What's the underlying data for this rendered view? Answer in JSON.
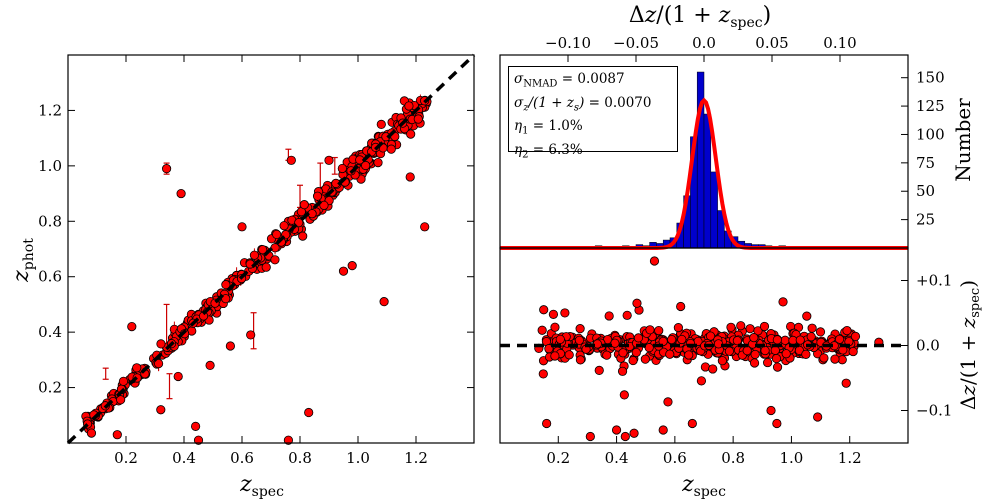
{
  "chart_data": [
    {
      "type": "scatter",
      "xlabel": "z_spec",
      "ylabel": "z_phot",
      "xlim": [
        0.0,
        1.4
      ],
      "ylim": [
        0.0,
        1.4
      ],
      "x_ticks": [
        "0.2",
        "0.4",
        "0.6",
        "0.8",
        "1.0",
        "1.2"
      ],
      "y_ticks": [
        "0.2",
        "0.4",
        "0.6",
        "0.8",
        "1.0",
        "1.2"
      ],
      "reference_line": "1:1 dashed black",
      "point_color": "#ff0000",
      "errorbar_color": "#cc0000",
      "outliers": [
        {
          "x": 0.34,
          "y": 0.99
        },
        {
          "x": 0.39,
          "y": 0.9
        },
        {
          "x": 0.77,
          "y": 1.02
        },
        {
          "x": 1.23,
          "y": 0.78
        },
        {
          "x": 1.09,
          "y": 0.51
        },
        {
          "x": 0.17,
          "y": 0.03
        },
        {
          "x": 0.44,
          "y": 0.06
        },
        {
          "x": 0.45,
          "y": 0.01
        },
        {
          "x": 0.76,
          "y": 0.01
        },
        {
          "x": 0.83,
          "y": 0.11
        },
        {
          "x": 0.32,
          "y": 0.12
        },
        {
          "x": 0.22,
          "y": 0.42
        },
        {
          "x": 0.56,
          "y": 0.35
        },
        {
          "x": 0.95,
          "y": 0.62
        },
        {
          "x": 0.9,
          "y": 1.02
        },
        {
          "x": 1.18,
          "y": 0.96
        },
        {
          "x": 0.6,
          "y": 0.78
        },
        {
          "x": 0.38,
          "y": 0.24
        },
        {
          "x": 0.49,
          "y": 0.28
        },
        {
          "x": 0.63,
          "y": 0.39
        },
        {
          "x": 0.98,
          "y": 0.64
        }
      ],
      "errorbars": [
        {
          "x": 0.34,
          "y": 0.42,
          "lo": 0.34,
          "hi": 0.5
        },
        {
          "x": 0.64,
          "y": 0.41,
          "lo": 0.34,
          "hi": 0.47
        },
        {
          "x": 0.8,
          "y": 0.89,
          "lo": 0.85,
          "hi": 0.93
        },
        {
          "x": 0.87,
          "y": 0.96,
          "lo": 0.91,
          "hi": 1.01
        },
        {
          "x": 0.35,
          "y": 0.19,
          "lo": 0.16,
          "hi": 0.25
        },
        {
          "x": 0.76,
          "y": 1.04,
          "lo": 1.02,
          "hi": 1.06
        },
        {
          "x": 0.92,
          "y": 1.0,
          "lo": 0.97,
          "hi": 1.03
        },
        {
          "x": 0.13,
          "y": 0.25,
          "lo": 0.23,
          "hi": 0.27
        },
        {
          "x": 0.34,
          "y": 0.99,
          "lo": 0.97,
          "hi": 1.01
        }
      ]
    },
    {
      "type": "bar",
      "top_xlabel": "Δz/(1 + z_spec)",
      "ylabel": "Number",
      "top_xlim": [
        -0.15,
        0.15
      ],
      "top_x_ticks": [
        "−0.10",
        "−0.05",
        "0.0",
        "0.05",
        "0.10"
      ],
      "y_ticks": [
        "25",
        "50",
        "75",
        "100",
        "125",
        "150"
      ],
      "ylim": [
        0,
        170
      ],
      "bar_color": "#0000cc",
      "fit_color": "#ff0000",
      "bin_width": 0.005,
      "bin_centers": [
        -0.1375,
        -0.1275,
        -0.1175,
        -0.0975,
        -0.0875,
        -0.0775,
        -0.0675,
        -0.0575,
        -0.0475,
        -0.0425,
        -0.0375,
        -0.0325,
        -0.0275,
        -0.0225,
        -0.0175,
        -0.0125,
        -0.0075,
        -0.0025,
        0.0025,
        0.0075,
        0.0125,
        0.0175,
        0.0225,
        0.0275,
        0.0325,
        0.0375,
        0.0425,
        0.0475,
        0.0575,
        0.0675,
        0.0875,
        0.1075
      ],
      "counts": [
        1,
        1,
        1,
        1,
        1,
        2,
        1,
        2,
        3,
        2,
        5,
        4,
        7,
        9,
        22,
        46,
        98,
        155,
        118,
        67,
        33,
        15,
        10,
        6,
        4,
        3,
        3,
        2,
        2,
        1,
        1,
        1
      ],
      "fit_peak": 130,
      "fit_sigma": 0.0087,
      "stats": {
        "sigma_nmad": "σ_NMAD = 0.0087",
        "sigma_z": "σ_z/(1 + z_s) = 0.0070",
        "eta1": "η_1 = 1.0%",
        "eta2": "η_2 = 6.3%"
      }
    },
    {
      "type": "scatter",
      "xlabel": "z_spec",
      "ylabel": "Δz/(1 + z_spec)",
      "xlim": [
        0.0,
        1.4
      ],
      "ylim": [
        -0.15,
        0.15
      ],
      "x_ticks": [
        "0.2",
        "0.4",
        "0.6",
        "0.8",
        "1.0",
        "1.2"
      ],
      "y_ticks": [
        "+0.1",
        "0.0",
        "−0.1"
      ],
      "reference_line": "y = 0 dashed black",
      "point_color": "#ff0000",
      "outliers": [
        {
          "x": 0.53,
          "y": 0.13
        },
        {
          "x": 0.16,
          "y": -0.12
        },
        {
          "x": 0.31,
          "y": -0.14
        },
        {
          "x": 0.4,
          "y": -0.13
        },
        {
          "x": 0.43,
          "y": -0.14
        },
        {
          "x": 0.46,
          "y": -0.135
        },
        {
          "x": 0.56,
          "y": -0.13
        },
        {
          "x": 0.66,
          "y": -0.12
        },
        {
          "x": 0.93,
          "y": -0.1
        },
        {
          "x": 0.95,
          "y": -0.12
        },
        {
          "x": 1.09,
          "y": -0.11
        },
        {
          "x": 0.62,
          "y": 0.06
        },
        {
          "x": 0.47,
          "y": 0.065
        },
        {
          "x": 0.15,
          "y": 0.055
        },
        {
          "x": 1.3,
          "y": 0.005
        }
      ]
    }
  ]
}
